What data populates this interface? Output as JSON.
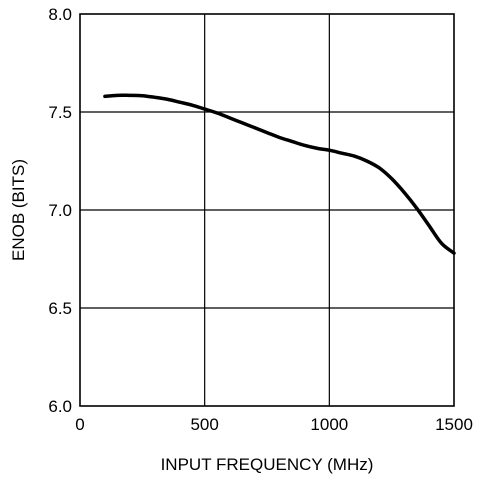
{
  "chart_data": {
    "type": "line",
    "title": "",
    "xlabel": "INPUT FREQUENCY (MHz)",
    "ylabel": "ENOB (BITS)",
    "xlim": [
      0,
      1500
    ],
    "ylim": [
      6.0,
      8.0
    ],
    "xticks": [
      0,
      500,
      1000,
      1500
    ],
    "yticks": [
      6.0,
      6.5,
      7.0,
      7.5,
      8.0
    ],
    "xtick_labels": [
      "0",
      "500",
      "1000",
      "1500"
    ],
    "ytick_labels": [
      "6.0",
      "6.5",
      "7.0",
      "7.5",
      "8.0"
    ],
    "grid": true,
    "legend": "none",
    "line_color": "#000000",
    "series": [
      {
        "x": [
          100,
          150,
          200,
          250,
          300,
          350,
          400,
          450,
          500,
          550,
          600,
          650,
          700,
          750,
          800,
          850,
          900,
          950,
          1000,
          1050,
          1100,
          1150,
          1200,
          1250,
          1300,
          1350,
          1400,
          1450,
          1500
        ],
        "y": [
          7.58,
          7.585,
          7.585,
          7.583,
          7.575,
          7.565,
          7.55,
          7.535,
          7.515,
          7.495,
          7.47,
          7.445,
          7.42,
          7.395,
          7.37,
          7.35,
          7.33,
          7.315,
          7.305,
          7.29,
          7.275,
          7.25,
          7.215,
          7.16,
          7.09,
          7.01,
          6.92,
          6.83,
          6.78
        ]
      }
    ]
  }
}
